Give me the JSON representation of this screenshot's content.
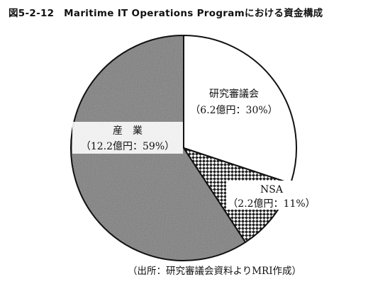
{
  "header": {
    "title": "図5-2-12　Maritime IT Operations Programにおける資金構成"
  },
  "footer": {
    "source": "（出所：研究審議会資料よりMRI作成）"
  },
  "chart_data": {
    "type": "pie",
    "title": "図5-2-12　Maritime IT Operations Programにおける資金構成",
    "units": "億円",
    "slices": [
      {
        "name": "研究審議会",
        "value": 6.2,
        "percent": 30,
        "detail": "（6.2億円：30%）",
        "fill": "#ffffff",
        "pattern": "none"
      },
      {
        "name": "NSA",
        "value": 2.2,
        "percent": 11,
        "detail": "（2.2億円：11%）",
        "fill": "#ffffff",
        "pattern": "checker"
      },
      {
        "name": "産　業",
        "value": 12.2,
        "percent": 59,
        "detail": "（12.2億円：59%）",
        "fill": "#7a7a7a",
        "pattern": "grain"
      }
    ],
    "start_angle_degrees": 0,
    "direction": "clockwise",
    "legend": "none"
  }
}
